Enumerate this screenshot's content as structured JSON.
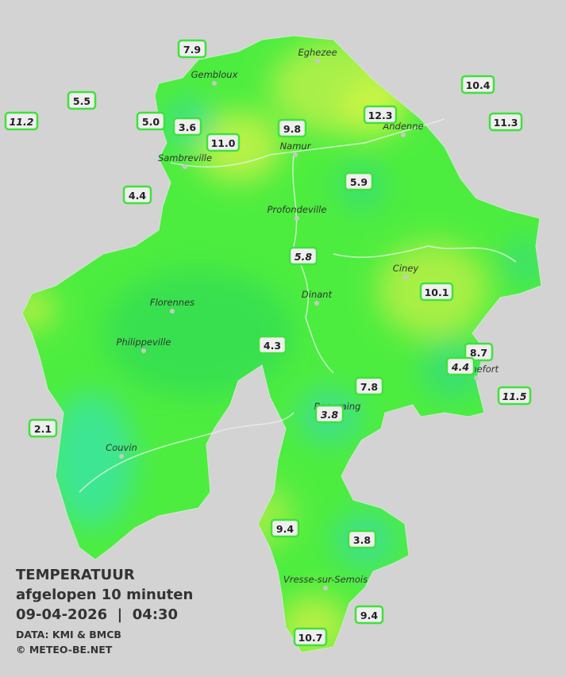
{
  "legend": {
    "title": "TEMPERATUUR",
    "subtitle": "afgelopen 10 minuten",
    "datetime": "09-04-2026  |  04:30",
    "source": "DATA: KMI & BMCB",
    "copyright": "© METEO-BE.NET"
  },
  "cities": [
    "Eghezee",
    "Gembloux",
    "Andenne",
    "Namur",
    "Sambreville",
    "Profondeville",
    "Ciney",
    "Dinant",
    "Florennes",
    "Philippeville",
    "Beauraing",
    "Rochefort",
    "Couvin",
    "Vresse-sur-Semois"
  ],
  "stations": [
    "7.9",
    "5.5",
    "11.2",
    "5.0",
    "3.6",
    "11.0",
    "9.8",
    "12.3",
    "10.4",
    "11.3",
    "4.4",
    "5.9",
    "5.8",
    "10.1",
    "4.3",
    "8.7",
    "4.4",
    "7.8",
    "11.5",
    "3.8",
    "2.1",
    "9.4",
    "3.8",
    "9.4",
    "10.7"
  ]
}
